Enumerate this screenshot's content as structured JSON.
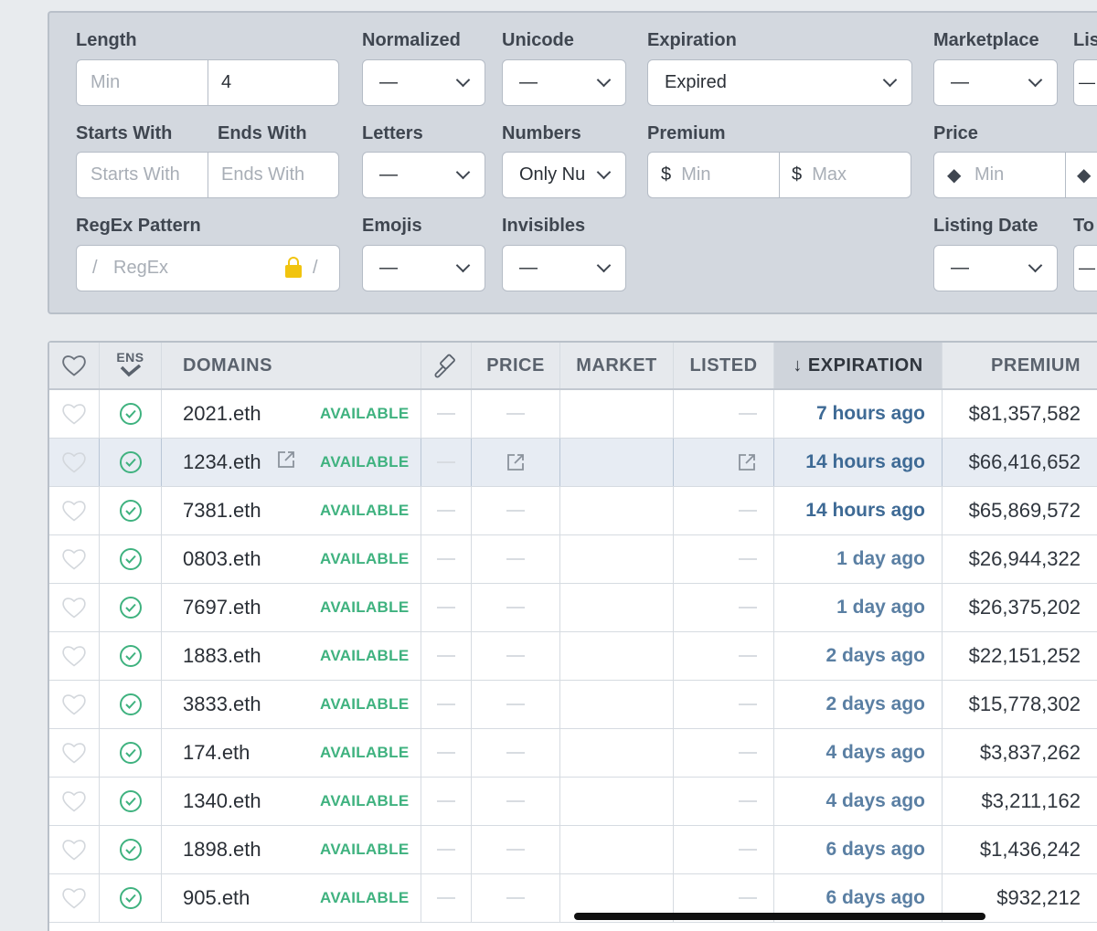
{
  "filters": {
    "length": {
      "label": "Length",
      "min_placeholder": "Min",
      "max_value": "4"
    },
    "normalized": {
      "label": "Normalized",
      "value": "—"
    },
    "unicode": {
      "label": "Unicode",
      "value": "—"
    },
    "expiration": {
      "label": "Expiration",
      "value": "Expired"
    },
    "marketplace": {
      "label": "Marketplace",
      "value": "—"
    },
    "listing": {
      "label": "Lis",
      "value": "—"
    },
    "starts_with": {
      "label": "Starts With",
      "placeholder": "Starts With"
    },
    "ends_with": {
      "label": "Ends With",
      "placeholder": "Ends With"
    },
    "letters": {
      "label": "Letters",
      "value": "—"
    },
    "numbers": {
      "label": "Numbers",
      "value": "Only Nu"
    },
    "premium": {
      "label": "Premium",
      "min_prefix": "$",
      "min_placeholder": "Min",
      "max_prefix": "$",
      "max_placeholder": "Max"
    },
    "price": {
      "label": "Price",
      "min_placeholder": "Min"
    },
    "regex": {
      "label": "RegEx Pattern",
      "prefix": "/",
      "placeholder": "RegEx",
      "suffix": "/"
    },
    "emojis": {
      "label": "Emojis",
      "value": "—"
    },
    "invisibles": {
      "label": "Invisibles",
      "value": "—"
    },
    "listing_date": {
      "label": "Listing Date",
      "value": "—"
    },
    "to": {
      "label": "To",
      "value": "—"
    }
  },
  "table": {
    "headers": {
      "ens": "ENS",
      "domains": "DOMAINS",
      "price": "PRICE",
      "market": "MARKET",
      "listed": "LISTED",
      "expiration": "↓ EXPIRATION",
      "premium": "PREMIUM"
    },
    "rows": [
      {
        "domain": "2021.eth",
        "status": "AVAILABLE",
        "expiration": "7 hours ago",
        "premium": "$81,357,582"
      },
      {
        "domain": "1234.eth",
        "status": "AVAILABLE",
        "expiration": "14 hours ago",
        "premium": "$66,416,652"
      },
      {
        "domain": "7381.eth",
        "status": "AVAILABLE",
        "expiration": "14 hours ago",
        "premium": "$65,869,572"
      },
      {
        "domain": "0803.eth",
        "status": "AVAILABLE",
        "expiration": "1 day ago",
        "premium": "$26,944,322"
      },
      {
        "domain": "7697.eth",
        "status": "AVAILABLE",
        "expiration": "1 day ago",
        "premium": "$26,375,202"
      },
      {
        "domain": "1883.eth",
        "status": "AVAILABLE",
        "expiration": "2 days ago",
        "premium": "$22,151,252"
      },
      {
        "domain": "3833.eth",
        "status": "AVAILABLE",
        "expiration": "2 days ago",
        "premium": "$15,778,302"
      },
      {
        "domain": "174.eth",
        "status": "AVAILABLE",
        "expiration": "4 days ago",
        "premium": "$3,837,262"
      },
      {
        "domain": "1340.eth",
        "status": "AVAILABLE",
        "expiration": "4 days ago",
        "premium": "$3,211,162"
      },
      {
        "domain": "1898.eth",
        "status": "AVAILABLE",
        "expiration": "6 days ago",
        "premium": "$1,436,242"
      },
      {
        "domain": "905.eth",
        "status": "AVAILABLE",
        "expiration": "6 days ago",
        "premium": "$932,212"
      }
    ]
  }
}
